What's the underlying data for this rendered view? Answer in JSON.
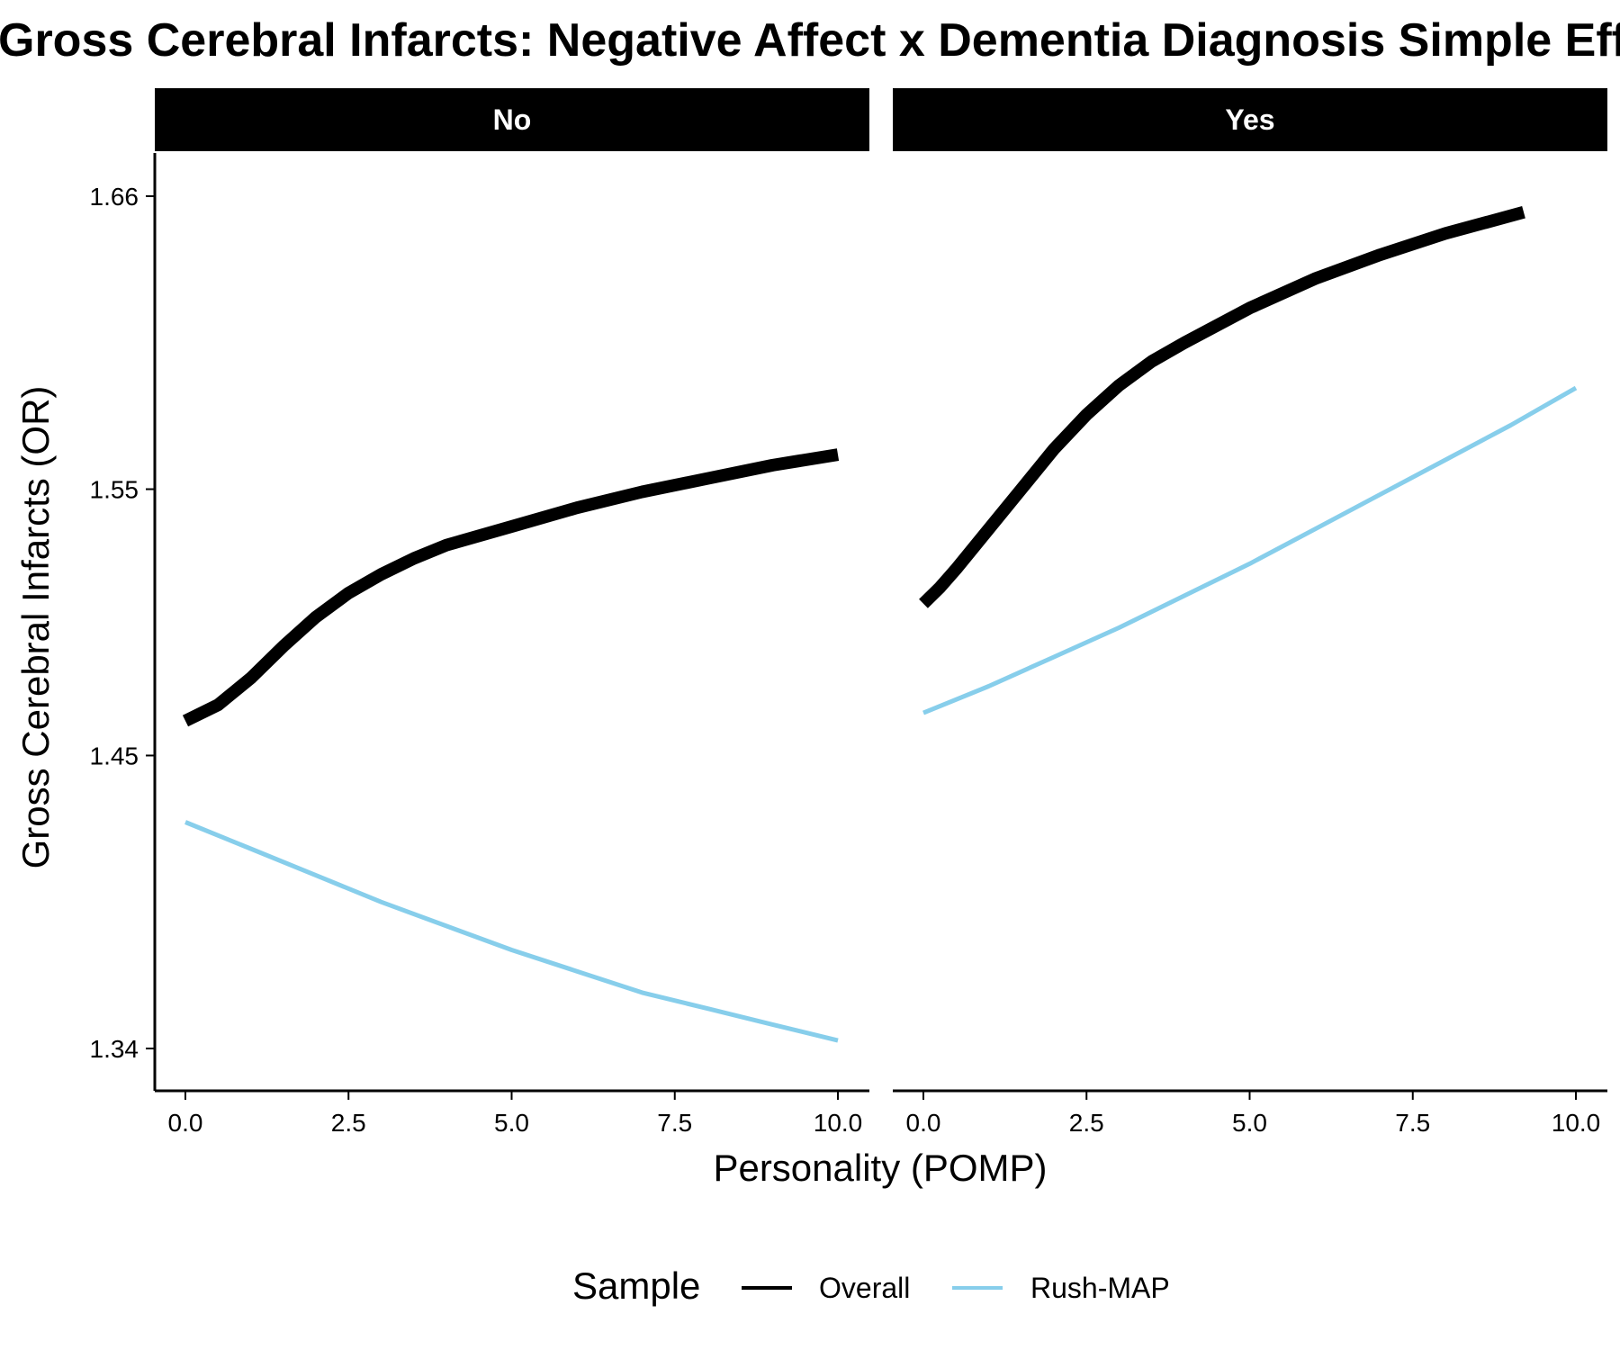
{
  "chart_data": {
    "type": "line",
    "title": "Gross Cerebral Infarcts: Negative Affect x Dementia Diagnosis Simple Effects",
    "xlabel": "Personality (POMP)",
    "ylabel": "Gross Cerebral Infarcts (OR)",
    "xlim": [
      0,
      10
    ],
    "ylim": [
      1.34,
      1.66
    ],
    "x_ticks": [
      0.0,
      2.5,
      5.0,
      7.5,
      10.0
    ],
    "x_tick_labels": [
      "0.0",
      "2.5",
      "5.0",
      "7.5",
      "10.0"
    ],
    "y_ticks": [
      1.34,
      1.45,
      1.55,
      1.66
    ],
    "y_tick_labels": [
      "1.34",
      "1.45",
      "1.55",
      "1.66"
    ],
    "legend": {
      "title": "Sample",
      "position": "bottom",
      "entries": [
        "Overall",
        "Rush-MAP"
      ]
    },
    "series_styles": {
      "Overall": {
        "color": "#000000",
        "weight": "thick"
      },
      "Rush-MAP": {
        "color": "#87CEEB",
        "weight": "thin"
      }
    },
    "panels": [
      {
        "label": "No",
        "series": [
          {
            "name": "Overall",
            "x": [
              0,
              0.5,
              1,
              1.5,
              2,
              2.5,
              3,
              3.5,
              4,
              5,
              6,
              7,
              8,
              9,
              10
            ],
            "values": [
              1.463,
              1.469,
              1.479,
              1.491,
              1.502,
              1.511,
              1.518,
              1.524,
              1.529,
              1.536,
              1.543,
              1.549,
              1.554,
              1.559,
              1.563
            ]
          },
          {
            "name": "Rush-MAP",
            "x": [
              0,
              1,
              2,
              3,
              4,
              5,
              6,
              7,
              8,
              9,
              10
            ],
            "values": [
              1.425,
              1.415,
              1.405,
              1.395,
              1.386,
              1.377,
              1.369,
              1.361,
              1.355,
              1.349,
              1.343
            ]
          }
        ]
      },
      {
        "label": "Yes",
        "series": [
          {
            "name": "Overall",
            "x": [
              0,
              0.25,
              0.5,
              1,
              1.5,
              2,
              2.5,
              3,
              3.5,
              4,
              5,
              6,
              7,
              8,
              9.2
            ],
            "values": [
              1.507,
              1.513,
              1.52,
              1.535,
              1.55,
              1.565,
              1.578,
              1.589,
              1.598,
              1.605,
              1.618,
              1.629,
              1.638,
              1.646,
              1.654
            ]
          },
          {
            "name": "Rush-MAP",
            "x": [
              0,
              1,
              2,
              3,
              4,
              5,
              6,
              7,
              8,
              9,
              10
            ],
            "values": [
              1.466,
              1.476,
              1.487,
              1.498,
              1.51,
              1.522,
              1.535,
              1.548,
              1.561,
              1.574,
              1.588
            ]
          }
        ]
      }
    ]
  }
}
